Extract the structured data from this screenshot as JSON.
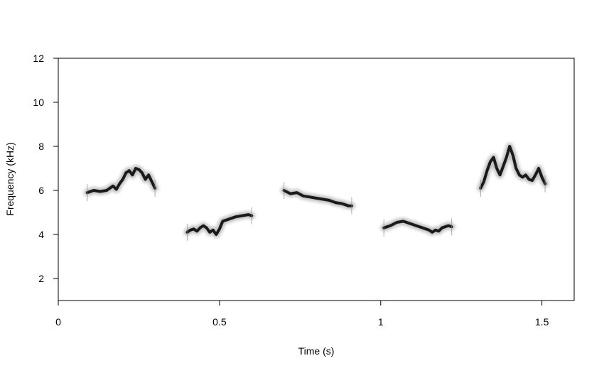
{
  "chart_data": {
    "type": "spectrogram",
    "xlabel": "Time (s)",
    "ylabel": "Frequency (kHz)",
    "xlim": [
      0,
      1.6
    ],
    "ylim": [
      1,
      12
    ],
    "x_ticks": [
      {
        "value": 0,
        "label": "0"
      },
      {
        "value": 0.5,
        "label": "0.5"
      },
      {
        "value": 1,
        "label": "1"
      },
      {
        "value": 1.5,
        "label": "1.5"
      }
    ],
    "y_ticks": [
      {
        "value": 2,
        "label": "2"
      },
      {
        "value": 4,
        "label": "4"
      },
      {
        "value": 6,
        "label": "6"
      },
      {
        "value": 8,
        "label": "8"
      },
      {
        "value": 10,
        "label": "10"
      },
      {
        "value": 12,
        "label": "12"
      }
    ],
    "colors": {
      "trace": "#1a1a1a",
      "halo": "#8c8c8c",
      "axis": "#000000",
      "background": "#ffffff"
    },
    "series": [
      {
        "points": [
          [
            0.09,
            5.9
          ],
          [
            0.11,
            6.0
          ],
          [
            0.13,
            5.95
          ],
          [
            0.15,
            6.0
          ],
          [
            0.16,
            6.1
          ],
          [
            0.17,
            6.2
          ],
          [
            0.18,
            6.05
          ],
          [
            0.19,
            6.3
          ],
          [
            0.2,
            6.5
          ],
          [
            0.21,
            6.8
          ],
          [
            0.22,
            6.9
          ],
          [
            0.23,
            6.7
          ],
          [
            0.24,
            7.0
          ],
          [
            0.25,
            6.95
          ],
          [
            0.26,
            6.8
          ],
          [
            0.27,
            6.5
          ],
          [
            0.28,
            6.7
          ],
          [
            0.29,
            6.4
          ],
          [
            0.3,
            6.1
          ]
        ]
      },
      {
        "points": [
          [
            0.4,
            4.1
          ],
          [
            0.41,
            4.2
          ],
          [
            0.42,
            4.25
          ],
          [
            0.43,
            4.15
          ],
          [
            0.44,
            4.3
          ],
          [
            0.45,
            4.4
          ],
          [
            0.46,
            4.3
          ],
          [
            0.47,
            4.1
          ],
          [
            0.48,
            4.2
          ],
          [
            0.49,
            4.0
          ],
          [
            0.5,
            4.25
          ],
          [
            0.51,
            4.6
          ],
          [
            0.53,
            4.7
          ],
          [
            0.55,
            4.8
          ],
          [
            0.57,
            4.85
          ],
          [
            0.59,
            4.9
          ],
          [
            0.6,
            4.85
          ]
        ]
      },
      {
        "points": [
          [
            0.7,
            6.0
          ],
          [
            0.72,
            5.85
          ],
          [
            0.74,
            5.9
          ],
          [
            0.76,
            5.75
          ],
          [
            0.78,
            5.7
          ],
          [
            0.8,
            5.65
          ],
          [
            0.82,
            5.6
          ],
          [
            0.84,
            5.55
          ],
          [
            0.86,
            5.45
          ],
          [
            0.88,
            5.4
          ],
          [
            0.9,
            5.3
          ],
          [
            0.91,
            5.3
          ]
        ]
      },
      {
        "points": [
          [
            1.01,
            4.3
          ],
          [
            1.03,
            4.4
          ],
          [
            1.05,
            4.55
          ],
          [
            1.07,
            4.6
          ],
          [
            1.09,
            4.5
          ],
          [
            1.11,
            4.4
          ],
          [
            1.13,
            4.3
          ],
          [
            1.15,
            4.2
          ],
          [
            1.16,
            4.1
          ],
          [
            1.17,
            4.2
          ],
          [
            1.18,
            4.15
          ],
          [
            1.19,
            4.3
          ],
          [
            1.21,
            4.4
          ],
          [
            1.22,
            4.35
          ]
        ]
      },
      {
        "points": [
          [
            1.31,
            6.1
          ],
          [
            1.32,
            6.4
          ],
          [
            1.33,
            6.9
          ],
          [
            1.34,
            7.3
          ],
          [
            1.35,
            7.5
          ],
          [
            1.36,
            7.0
          ],
          [
            1.37,
            6.7
          ],
          [
            1.38,
            7.1
          ],
          [
            1.39,
            7.5
          ],
          [
            1.4,
            8.0
          ],
          [
            1.41,
            7.6
          ],
          [
            1.42,
            7.0
          ],
          [
            1.43,
            6.7
          ],
          [
            1.44,
            6.6
          ],
          [
            1.45,
            6.7
          ],
          [
            1.46,
            6.5
          ],
          [
            1.47,
            6.45
          ],
          [
            1.48,
            6.7
          ],
          [
            1.49,
            7.0
          ],
          [
            1.5,
            6.6
          ],
          [
            1.51,
            6.3
          ]
        ]
      }
    ]
  }
}
